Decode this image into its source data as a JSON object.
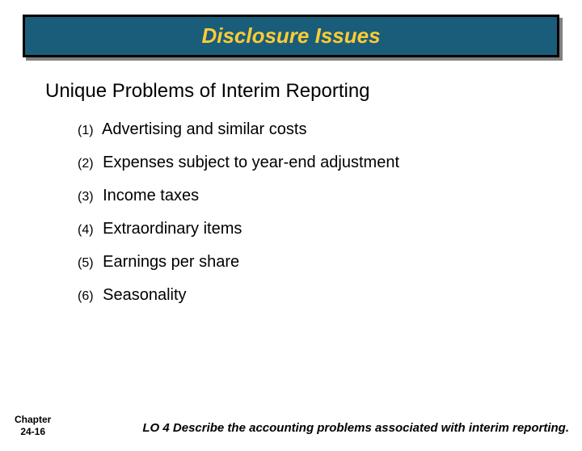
{
  "title": "Disclosure Issues",
  "subtitle": "Unique Problems of Interim Reporting",
  "items": [
    {
      "num": "(1)",
      "text": "Advertising and similar costs"
    },
    {
      "num": "(2)",
      "text": "Expenses subject to year-end adjustment"
    },
    {
      "num": "(3)",
      "text": "Income taxes"
    },
    {
      "num": "(4)",
      "text": "Extraordinary items"
    },
    {
      "num": "(5)",
      "text": "Earnings per share"
    },
    {
      "num": "(6)",
      "text": "Seasonality"
    }
  ],
  "chapter_line1": "Chapter",
  "chapter_line2": "24-16",
  "lo": "LO 4 Describe the accounting problems associated with interim reporting."
}
